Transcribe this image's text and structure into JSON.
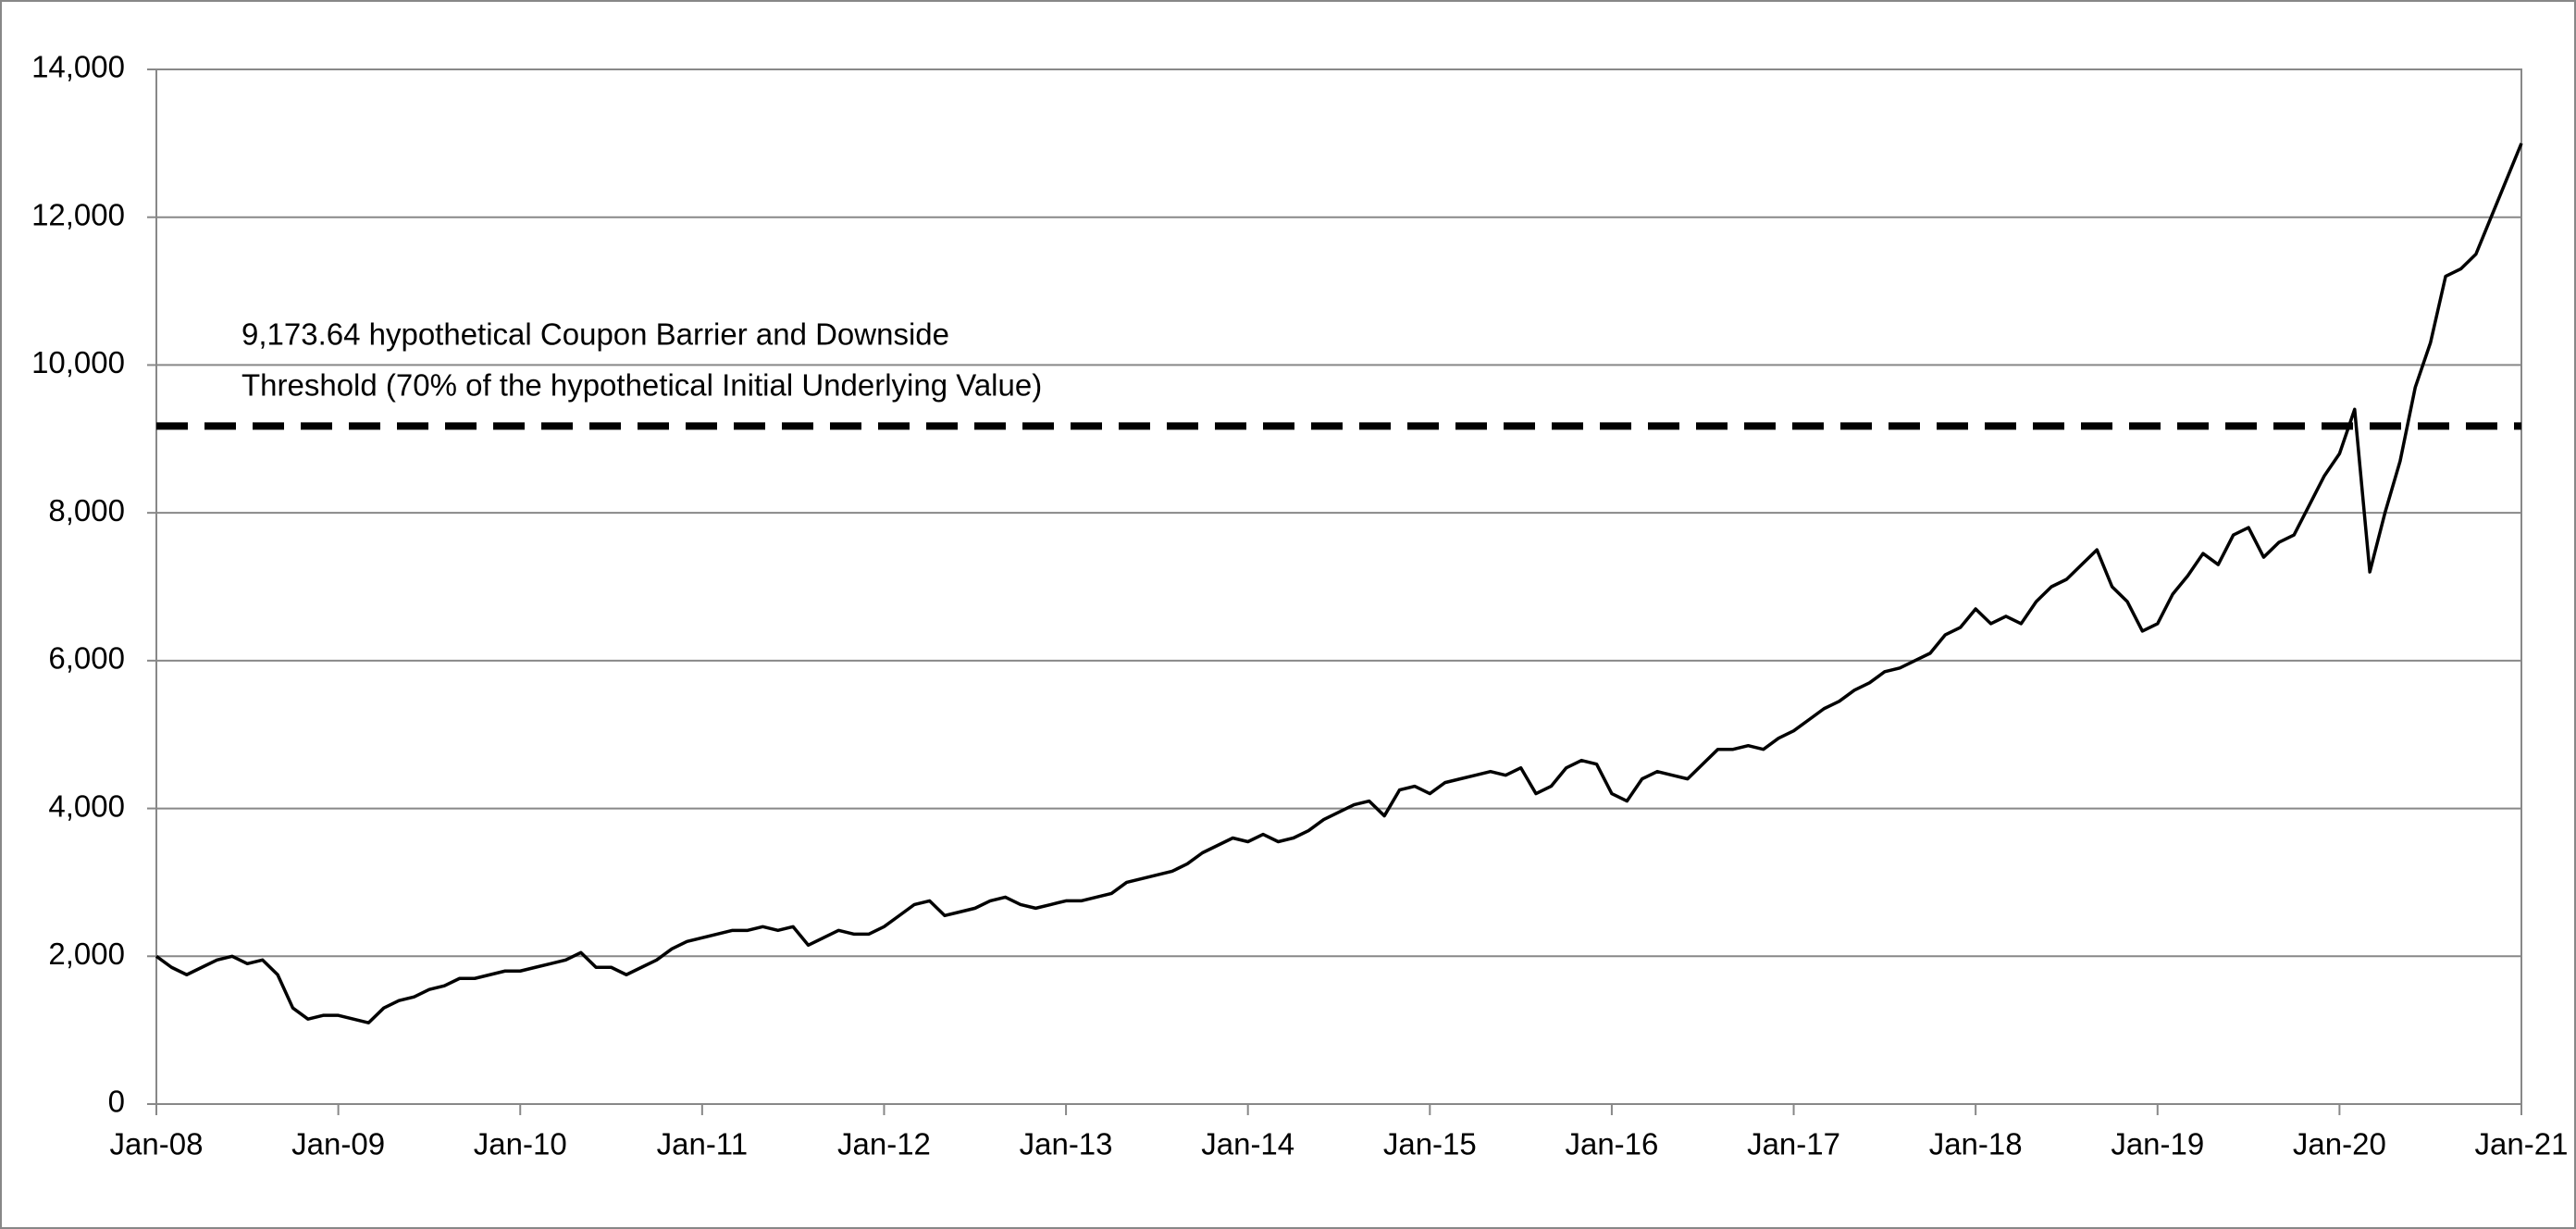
{
  "chart_data": {
    "type": "line",
    "x": [
      "Jan-08",
      "Feb-08",
      "Mar-08",
      "Apr-08",
      "May-08",
      "Jun-08",
      "Jul-08",
      "Aug-08",
      "Sep-08",
      "Oct-08",
      "Nov-08",
      "Dec-08",
      "Jan-09",
      "Feb-09",
      "Mar-09",
      "Apr-09",
      "May-09",
      "Jun-09",
      "Jul-09",
      "Aug-09",
      "Sep-09",
      "Oct-09",
      "Nov-09",
      "Dec-09",
      "Jan-10",
      "Feb-10",
      "Mar-10",
      "Apr-10",
      "May-10",
      "Jun-10",
      "Jul-10",
      "Aug-10",
      "Sep-10",
      "Oct-10",
      "Nov-10",
      "Dec-10",
      "Jan-11",
      "Feb-11",
      "Mar-11",
      "Apr-11",
      "May-11",
      "Jun-11",
      "Jul-11",
      "Aug-11",
      "Sep-11",
      "Oct-11",
      "Nov-11",
      "Dec-11",
      "Jan-12",
      "Feb-12",
      "Mar-12",
      "Apr-12",
      "May-12",
      "Jun-12",
      "Jul-12",
      "Aug-12",
      "Sep-12",
      "Oct-12",
      "Nov-12",
      "Dec-12",
      "Jan-13",
      "Feb-13",
      "Mar-13",
      "Apr-13",
      "May-13",
      "Jun-13",
      "Jul-13",
      "Aug-13",
      "Sep-13",
      "Oct-13",
      "Nov-13",
      "Dec-13",
      "Jan-14",
      "Feb-14",
      "Mar-14",
      "Apr-14",
      "May-14",
      "Jun-14",
      "Jul-14",
      "Aug-14",
      "Sep-14",
      "Oct-14",
      "Nov-14",
      "Dec-14",
      "Jan-15",
      "Feb-15",
      "Mar-15",
      "Apr-15",
      "May-15",
      "Jun-15",
      "Jul-15",
      "Aug-15",
      "Sep-15",
      "Oct-15",
      "Nov-15",
      "Dec-15",
      "Jan-16",
      "Feb-16",
      "Mar-16",
      "Apr-16",
      "May-16",
      "Jun-16",
      "Jul-16",
      "Aug-16",
      "Sep-16",
      "Oct-16",
      "Nov-16",
      "Dec-16",
      "Jan-17",
      "Feb-17",
      "Mar-17",
      "Apr-17",
      "May-17",
      "Jun-17",
      "Jul-17",
      "Aug-17",
      "Sep-17",
      "Oct-17",
      "Nov-17",
      "Dec-17",
      "Jan-18",
      "Feb-18",
      "Mar-18",
      "Apr-18",
      "May-18",
      "Jun-18",
      "Jul-18",
      "Aug-18",
      "Sep-18",
      "Oct-18",
      "Nov-18",
      "Dec-18",
      "Jan-19",
      "Feb-19",
      "Mar-19",
      "Apr-19",
      "May-19",
      "Jun-19",
      "Jul-19",
      "Aug-19",
      "Sep-19",
      "Oct-19",
      "Nov-19",
      "Dec-19",
      "Jan-20",
      "Feb-20",
      "Mar-20",
      "Apr-20",
      "May-20",
      "Jun-20",
      "Jul-20",
      "Aug-20",
      "Sep-20",
      "Oct-20",
      "Nov-20",
      "Dec-20",
      "Jan-21"
    ],
    "series": [
      {
        "color": "#000000",
        "values": [
          2000,
          1850,
          1750,
          1850,
          1950,
          2000,
          1900,
          1950,
          1750,
          1300,
          1150,
          1200,
          1200,
          1150,
          1100,
          1300,
          1400,
          1450,
          1550,
          1600,
          1700,
          1700,
          1750,
          1800,
          1800,
          1850,
          1900,
          1950,
          2050,
          1850,
          1850,
          1750,
          1850,
          1950,
          2100,
          2200,
          2250,
          2300,
          2350,
          2350,
          2400,
          2350,
          2400,
          2150,
          2250,
          2350,
          2300,
          2300,
          2400,
          2550,
          2700,
          2750,
          2550,
          2600,
          2650,
          2750,
          2800,
          2700,
          2650,
          2700,
          2750,
          2750,
          2800,
          2850,
          3000,
          3050,
          3100,
          3150,
          3250,
          3400,
          3500,
          3600,
          3550,
          3650,
          3550,
          3600,
          3700,
          3850,
          3950,
          4050,
          4100,
          3900,
          4250,
          4300,
          4200,
          4350,
          4400,
          4450,
          4500,
          4450,
          4550,
          4200,
          4300,
          4550,
          4650,
          4600,
          4200,
          4100,
          4400,
          4500,
          4450,
          4400,
          4600,
          4800,
          4800,
          4850,
          4800,
          4950,
          5050,
          5200,
          5350,
          5450,
          5600,
          5700,
          5850,
          5900,
          6000,
          6100,
          6350,
          6450,
          6700,
          6500,
          6600,
          6500,
          6800,
          7000,
          7100,
          7300,
          7500,
          7000,
          6800,
          6400,
          6500,
          6900,
          7150,
          7450,
          7300,
          7700,
          7800,
          7400,
          7600,
          7700,
          8100,
          8500,
          8800,
          9400,
          7200,
          8000,
          8700,
          9700,
          10300,
          11200,
          11300,
          11500,
          12000,
          12500,
          13000
        ]
      }
    ],
    "xticks": [
      "Jan-08",
      "Jan-09",
      "Jan-10",
      "Jan-11",
      "Jan-12",
      "Jan-13",
      "Jan-14",
      "Jan-15",
      "Jan-16",
      "Jan-17",
      "Jan-18",
      "Jan-19",
      "Jan-20",
      "Jan-21"
    ],
    "ylim": [
      0,
      14000
    ],
    "yticks": [
      0,
      {
        "value": 2000,
        "label": "2,000"
      },
      {
        "value": 4000,
        "label": "4,000"
      },
      {
        "value": 6000,
        "label": "6,000"
      },
      {
        "value": 8000,
        "label": "8,000"
      },
      {
        "value": 10000,
        "label": "10,000"
      },
      {
        "value": 12000,
        "label": "12,000"
      },
      {
        "value": 14000,
        "label": "14,000"
      }
    ],
    "grid": true,
    "annotation": {
      "value": 9173.64,
      "color": "#000000",
      "text": [
        "9,173.64 hypothetical Coupon Barrier and Downside",
        "Threshold (70% of the hypothetical Initial Underlying Value)"
      ]
    }
  }
}
